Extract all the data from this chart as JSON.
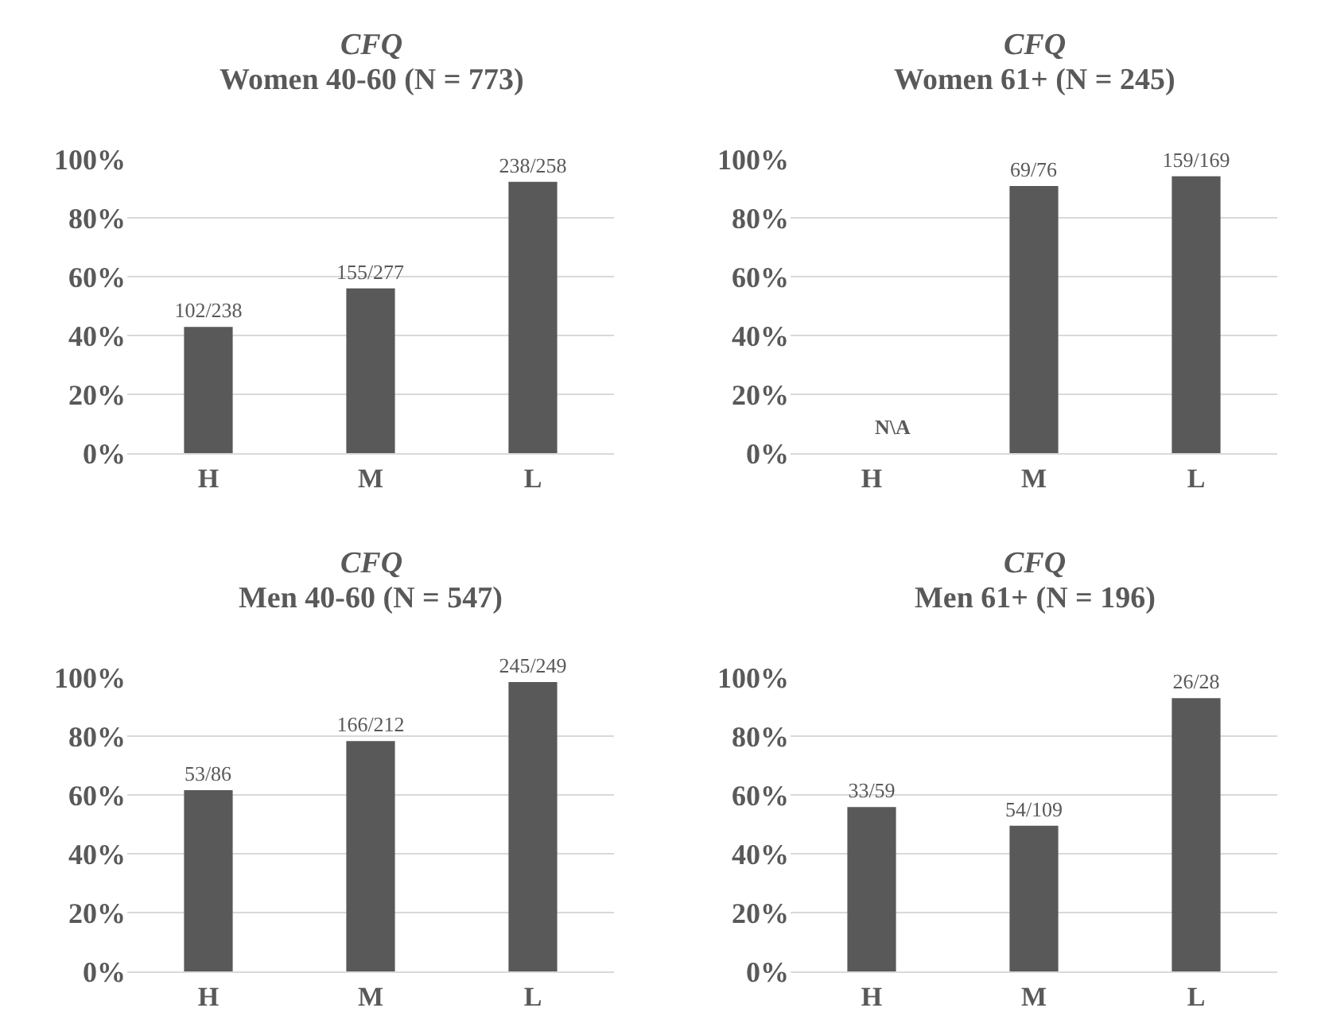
{
  "chart_data": [
    {
      "type": "bar",
      "title": "CFQ",
      "subtitle": "Women 40-60 (N = 773)",
      "categories": [
        "H",
        "M",
        "L"
      ],
      "values": [
        42.9,
        56.0,
        92.2
      ],
      "value_labels": [
        "102/238",
        "155/277",
        "238/258"
      ],
      "color": "#595959",
      "ylim": [
        0,
        100
      ],
      "yticks": [
        {
          "value": 0,
          "label": "0%"
        },
        {
          "value": 20,
          "label": "20%"
        },
        {
          "value": 40,
          "label": "40%"
        },
        {
          "value": 60,
          "label": "60%"
        },
        {
          "value": 80,
          "label": "80%"
        },
        {
          "value": 100,
          "label": "100%"
        }
      ],
      "grid": "y"
    },
    {
      "type": "bar",
      "title": "CFQ",
      "subtitle": "Women 61+ (N = 245)",
      "categories": [
        "H",
        "M",
        "L"
      ],
      "values": [
        null,
        90.8,
        94.1
      ],
      "value_labels": [
        null,
        "69/76",
        "159/169"
      ],
      "color": "#595959",
      "ylim": [
        0,
        100
      ],
      "yticks": [
        {
          "value": 0,
          "label": "0%"
        },
        {
          "value": 20,
          "label": "20%"
        },
        {
          "value": 40,
          "label": "40%"
        },
        {
          "value": 60,
          "label": "60%"
        },
        {
          "value": 80,
          "label": "80%"
        },
        {
          "value": 100,
          "label": "100%"
        }
      ],
      "grid": "y",
      "annotations": [
        "N\\A"
      ]
    },
    {
      "type": "bar",
      "title": "CFQ",
      "subtitle": "Men 40-60 (N = 547)",
      "categories": [
        "H",
        "M",
        "L"
      ],
      "values": [
        61.6,
        78.3,
        98.4
      ],
      "value_labels": [
        "53/86",
        "166/212",
        "245/249"
      ],
      "color": "#595959",
      "ylim": [
        0,
        100
      ],
      "yticks": [
        {
          "value": 0,
          "label": "0%"
        },
        {
          "value": 20,
          "label": "20%"
        },
        {
          "value": 40,
          "label": "40%"
        },
        {
          "value": 60,
          "label": "60%"
        },
        {
          "value": 80,
          "label": "80%"
        },
        {
          "value": 100,
          "label": "100%"
        }
      ],
      "grid": "y"
    },
    {
      "type": "bar",
      "title": "CFQ",
      "subtitle": "Men 61+ (N = 196)",
      "categories": [
        "H",
        "M",
        "L"
      ],
      "values": [
        55.9,
        49.5,
        92.9
      ],
      "value_labels": [
        "33/59",
        "54/109",
        "26/28"
      ],
      "color": "#595959",
      "ylim": [
        0,
        100
      ],
      "yticks": [
        {
          "value": 0,
          "label": "0%"
        },
        {
          "value": 20,
          "label": "20%"
        },
        {
          "value": 40,
          "label": "40%"
        },
        {
          "value": 60,
          "label": "60%"
        },
        {
          "value": 80,
          "label": "80%"
        },
        {
          "value": 100,
          "label": "100%"
        }
      ],
      "grid": "y"
    }
  ]
}
